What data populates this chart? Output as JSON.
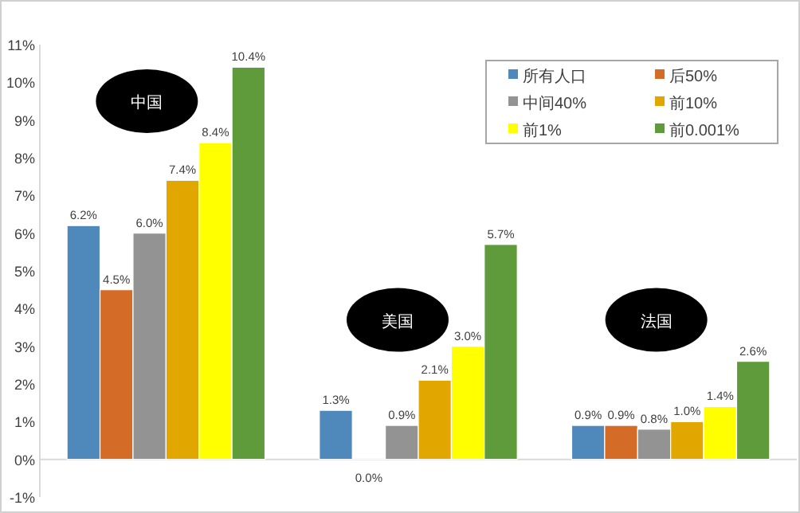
{
  "chart_data": {
    "type": "bar",
    "categories": [
      null,
      null,
      null
    ],
    "series": [
      {
        "name": "所有人口",
        "color": "#4f88bb",
        "values": [
          6.2,
          1.3,
          0.9
        ],
        "value_labels": [
          "6.2%",
          "1.3%",
          "0.9%"
        ]
      },
      {
        "name": "后50%",
        "color": "#d46b27",
        "values": [
          4.5,
          0.0,
          0.9
        ],
        "value_labels": [
          "4.5%",
          "0.0%",
          "0.9%"
        ]
      },
      {
        "name": "中间40%",
        "color": "#939393",
        "values": [
          6.0,
          0.9,
          0.8
        ],
        "value_labels": [
          "6.0%",
          "0.9%",
          "0.8%"
        ]
      },
      {
        "name": "前10%",
        "color": "#e2a600",
        "values": [
          7.4,
          2.1,
          1.0
        ],
        "value_labels": [
          "7.4%",
          "2.1%",
          "1.0%"
        ]
      },
      {
        "name": "前1%",
        "color": "#ffff00",
        "values": [
          8.4,
          3.0,
          1.4
        ],
        "value_labels": [
          "8.4%",
          "3.0%",
          "1.4%"
        ]
      },
      {
        "name": "前0.001%",
        "color": "#5f9a3b",
        "values": [
          10.4,
          5.7,
          2.6
        ],
        "value_labels": [
          "10.4%",
          "5.7%",
          "2.6%"
        ]
      }
    ],
    "ylim": [
      -1,
      11
    ],
    "yticks": [
      {
        "value": -1,
        "label": "-1%"
      },
      {
        "value": 0,
        "label": "0%"
      },
      {
        "value": 1,
        "label": "1%"
      },
      {
        "value": 2,
        "label": "2%"
      },
      {
        "value": 3,
        "label": "3%"
      },
      {
        "value": 4,
        "label": "4%"
      },
      {
        "value": 5,
        "label": "5%"
      },
      {
        "value": 6,
        "label": "6%"
      },
      {
        "value": 7,
        "label": "7%"
      },
      {
        "value": 8,
        "label": "8%"
      },
      {
        "value": 9,
        "label": "9%"
      },
      {
        "value": 10,
        "label": "10%"
      },
      {
        "value": 11,
        "label": "11%"
      }
    ],
    "annotations": [
      "中国",
      "美国",
      "法国"
    ],
    "legend": "top right"
  }
}
